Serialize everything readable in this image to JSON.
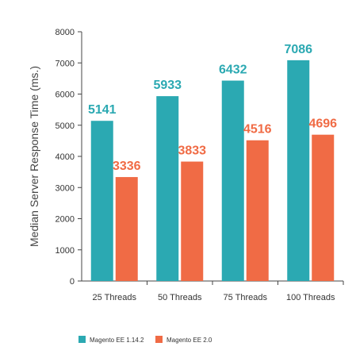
{
  "chart_data": {
    "type": "bar",
    "title": "",
    "xlabel": "",
    "ylabel": "Median Server Response Time (ms.)",
    "ylim": [
      0,
      8000
    ],
    "yticks": [
      0,
      1000,
      2000,
      3000,
      4000,
      5000,
      6000,
      7000,
      8000
    ],
    "categories": [
      "25 Threads",
      "50 Threads",
      "75 Threads",
      "100 Threads"
    ],
    "series": [
      {
        "name": "Magento EE 1.14.2",
        "color": "#2ba9b2",
        "values": [
          5141,
          5933,
          6432,
          7086
        ]
      },
      {
        "name": "Magento EE 2.0",
        "color": "#f06b45",
        "values": [
          3336,
          3833,
          4516,
          4696
        ]
      }
    ],
    "grid": false,
    "legend_position": "bottom-left",
    "data_labels": true
  }
}
